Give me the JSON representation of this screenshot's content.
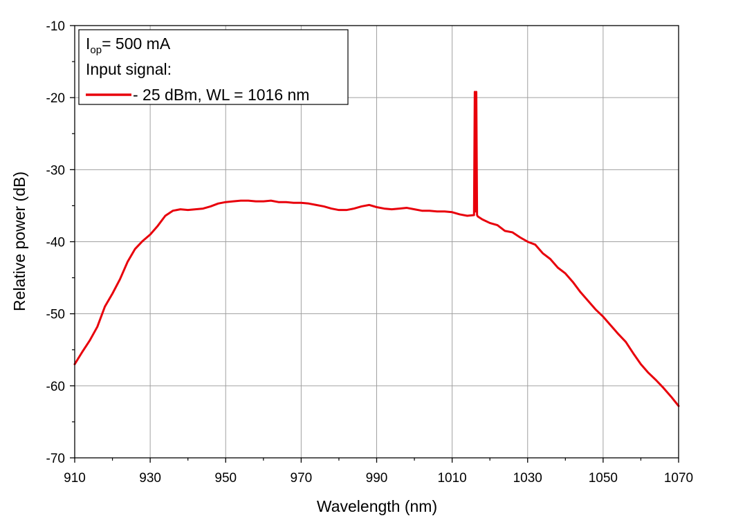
{
  "chart_data": {
    "type": "line",
    "xlabel": "Wavelength (nm)",
    "ylabel": "Relative power (dB)",
    "xlim": [
      910,
      1070
    ],
    "ylim": [
      -70,
      -10
    ],
    "xticks": [
      910,
      930,
      950,
      970,
      990,
      1010,
      1030,
      1050,
      1070
    ],
    "yticks": [
      -10,
      -20,
      -30,
      -40,
      -50,
      -60,
      -70
    ],
    "grid": true,
    "legend": {
      "placement": "top-left",
      "lines": [
        {
          "main": "I",
          "sub": "op",
          "rest": "= 500 mA"
        },
        {
          "text": "Input signal:"
        }
      ],
      "entry": "- 25 dBm, WL = 1016 nm"
    },
    "series": [
      {
        "color": "#e8000b",
        "x": [
          910,
          912,
          914,
          916,
          918,
          920,
          922,
          924,
          926,
          928,
          930,
          932,
          934,
          936,
          938,
          940,
          942,
          944,
          946,
          948,
          950,
          952,
          954,
          956,
          958,
          960,
          962,
          964,
          966,
          968,
          970,
          972,
          974,
          976,
          978,
          980,
          982,
          984,
          986,
          988,
          990,
          992,
          994,
          996,
          998,
          1000,
          1002,
          1004,
          1006,
          1008,
          1010,
          1012,
          1014,
          1015.8,
          1016,
          1016.2,
          1016.4,
          1016.6,
          1016.8,
          1018,
          1020,
          1022,
          1024,
          1026,
          1028,
          1030,
          1032,
          1034,
          1036,
          1038,
          1040,
          1042,
          1044,
          1046,
          1048,
          1050,
          1052,
          1054,
          1056,
          1058,
          1060,
          1062,
          1064,
          1066,
          1068,
          1070
        ],
        "y": [
          -57.0,
          -55.3,
          -53.7,
          -51.8,
          -49.0,
          -47.2,
          -45.2,
          -42.8,
          -41.0,
          -39.9,
          -39.0,
          -37.8,
          -36.4,
          -35.7,
          -35.5,
          -35.6,
          -35.5,
          -35.4,
          -35.1,
          -34.7,
          -34.5,
          -34.4,
          -34.3,
          -34.3,
          -34.4,
          -34.4,
          -34.3,
          -34.5,
          -34.5,
          -34.6,
          -34.6,
          -34.7,
          -34.9,
          -35.1,
          -35.4,
          -35.6,
          -35.6,
          -35.4,
          -35.1,
          -34.9,
          -35.2,
          -35.4,
          -35.5,
          -35.4,
          -35.3,
          -35.5,
          -35.7,
          -35.7,
          -35.8,
          -35.8,
          -35.9,
          -36.2,
          -36.4,
          -36.3,
          -19.2,
          -35.8,
          -19.2,
          -36.3,
          -36.5,
          -36.9,
          -37.4,
          -37.7,
          -38.5,
          -38.7,
          -39.4,
          -40.0,
          -40.4,
          -41.6,
          -42.4,
          -43.6,
          -44.4,
          -45.6,
          -47.0,
          -48.2,
          -49.4,
          -50.4,
          -51.6,
          -52.8,
          -53.9,
          -55.5,
          -57.0,
          -58.2,
          -59.2,
          -60.3,
          -61.5,
          -62.8
        ]
      }
    ]
  }
}
